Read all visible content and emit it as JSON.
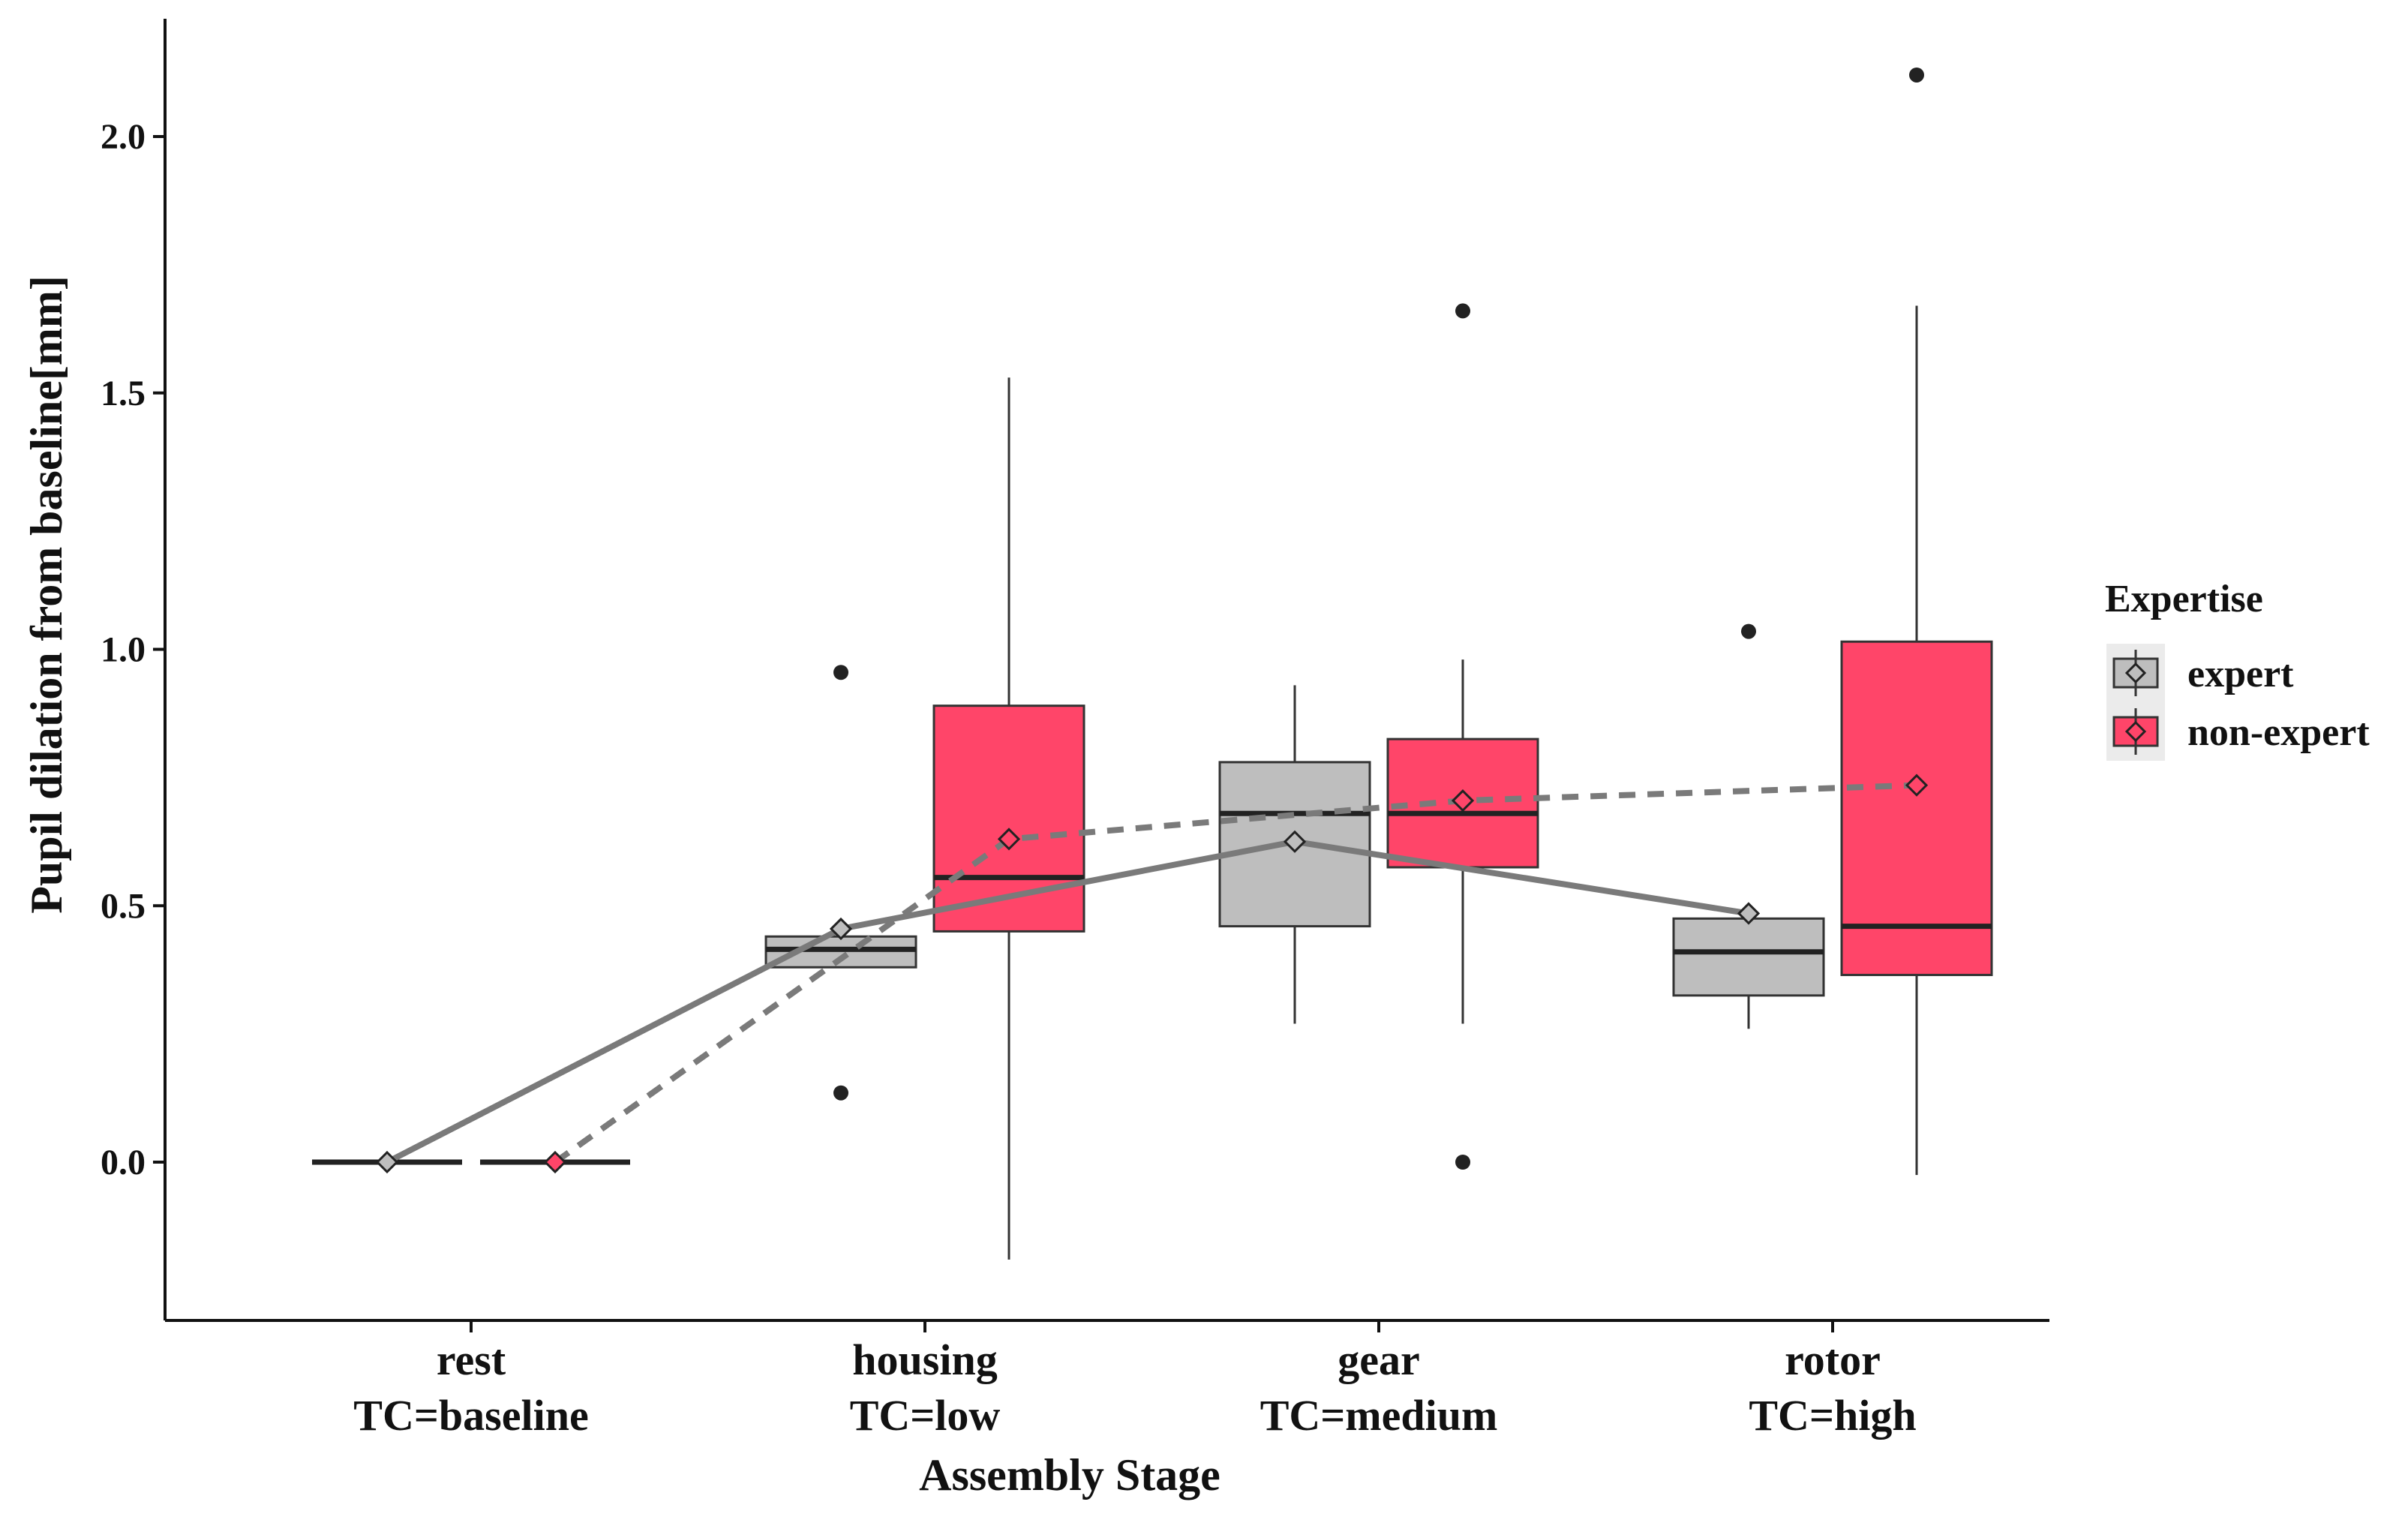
{
  "chart_data": {
    "type": "boxplot",
    "title": "",
    "xlabel": "Assembly Stage",
    "ylabel": "Pupil dilation from baseline[mm]",
    "ylim": [
      -0.3,
      2.25
    ],
    "yticks": [
      0.0,
      0.5,
      1.0,
      1.5,
      2.0
    ],
    "ytick_labels": [
      "0.0",
      "0.5",
      "1.0",
      "1.5",
      "2.0"
    ],
    "grid": false,
    "categories": [
      {
        "name": "rest",
        "tc": "TC=baseline"
      },
      {
        "name": "housing",
        "tc": "TC=low"
      },
      {
        "name": "gear",
        "tc": "TC=medium"
      },
      {
        "name": "rotor",
        "tc": "TC=high"
      }
    ],
    "legend": {
      "title": "Expertise",
      "placement": "right",
      "entries": [
        {
          "label": "expert",
          "color": "#bebebe"
        },
        {
          "label": "non-expert",
          "color": "#ff4569"
        }
      ]
    },
    "series": [
      {
        "name": "expert",
        "color": "#bebebe",
        "mean_line_style": "solid",
        "boxes": [
          {
            "category": "rest",
            "min": 0.0,
            "q1": 0.0,
            "median": 0.0,
            "q3": 0.0,
            "max": 0.0,
            "mean": 0.0,
            "outliers": []
          },
          {
            "category": "housing",
            "min": 0.38,
            "q1": 0.38,
            "median": 0.415,
            "q3": 0.44,
            "max": 0.44,
            "mean": 0.455,
            "outliers": [
              0.955,
              0.135
            ]
          },
          {
            "category": "gear",
            "min": 0.27,
            "q1": 0.46,
            "median": 0.68,
            "q3": 0.78,
            "max": 0.93,
            "mean": 0.625,
            "outliers": []
          },
          {
            "category": "rotor",
            "min": 0.26,
            "q1": 0.325,
            "median": 0.41,
            "q3": 0.475,
            "max": 0.475,
            "mean": 0.485,
            "outliers": [
              1.035
            ]
          }
        ]
      },
      {
        "name": "non-expert",
        "color": "#ff4569",
        "mean_line_style": "dashed",
        "boxes": [
          {
            "category": "rest",
            "min": 0.0,
            "q1": 0.0,
            "median": 0.0,
            "q3": 0.0,
            "max": 0.0,
            "mean": 0.0,
            "outliers": []
          },
          {
            "category": "housing",
            "min": -0.19,
            "q1": 0.45,
            "median": 0.555,
            "q3": 0.89,
            "max": 1.53,
            "mean": 0.63,
            "outliers": []
          },
          {
            "category": "gear",
            "min": 0.27,
            "q1": 0.575,
            "median": 0.68,
            "q3": 0.825,
            "max": 0.98,
            "mean": 0.705,
            "outliers": [
              1.66,
              0.0
            ]
          },
          {
            "category": "rotor",
            "min": -0.025,
            "q1": 0.365,
            "median": 0.46,
            "q3": 1.015,
            "max": 1.67,
            "mean": 0.735,
            "outliers": [
              2.12
            ]
          }
        ]
      }
    ]
  }
}
